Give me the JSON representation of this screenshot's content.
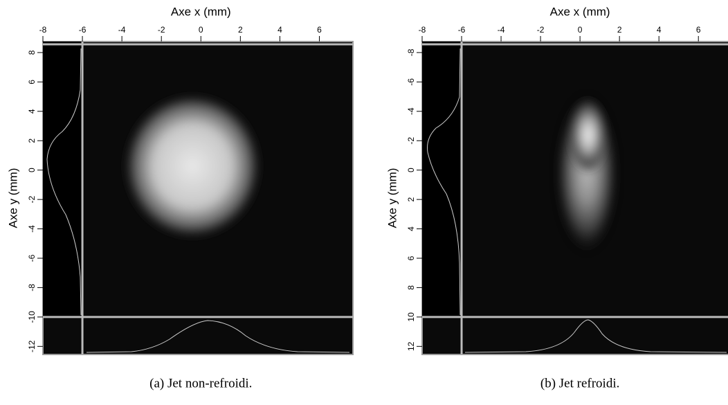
{
  "figure": {
    "panels": [
      {
        "xlabel": "Axe x (mm)",
        "ylabel": "Axe y (mm)",
        "xlim": [
          -8,
          7.7
        ],
        "ylim": [
          8.75,
          -12.55
        ],
        "xticks": [
          -8,
          -6,
          -4,
          -2,
          0,
          2,
          4,
          6
        ],
        "yticks": [
          8,
          6,
          4,
          2,
          0,
          -2,
          -4,
          -6,
          -8,
          -10,
          -12
        ],
        "cursor": {
          "x": -6,
          "y": -10
        },
        "caption": "(a) Jet non-refroidi."
      },
      {
        "xlabel": "Axe x (mm)",
        "ylabel": "Axe y (mm)",
        "xlim": [
          -8,
          7.5
        ],
        "ylim": [
          -8.75,
          12.55
        ],
        "xticks": [
          -8,
          -6,
          -4,
          -2,
          0,
          2,
          4,
          6
        ],
        "yticks": [
          -8,
          -6,
          -4,
          -2,
          0,
          2,
          4,
          6,
          8,
          10,
          12
        ],
        "cursor": {
          "x": -6,
          "y": 10
        },
        "caption": "(b) Jet refroidi."
      }
    ]
  }
}
